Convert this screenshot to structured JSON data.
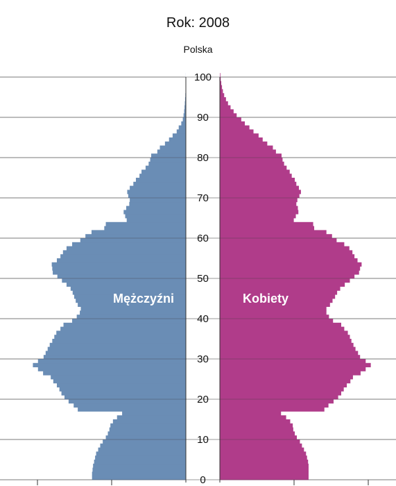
{
  "chart_data": {
    "type": "bar",
    "orientation": "horizontal-population-pyramid",
    "title": "Rok: 2008",
    "subtitle": "Polska",
    "grid": true,
    "y_axis": {
      "range": [
        0,
        100
      ],
      "ticks": [
        "0",
        "10",
        "20",
        "30",
        "40",
        "50",
        "60",
        "70",
        "80",
        "90",
        "100"
      ]
    },
    "x_range_per_side": [
      0,
      340000
    ],
    "age_groups": [
      0,
      1,
      2,
      3,
      4,
      5,
      6,
      7,
      8,
      9,
      10,
      11,
      12,
      13,
      14,
      15,
      16,
      17,
      18,
      19,
      20,
      21,
      22,
      23,
      24,
      25,
      26,
      27,
      28,
      29,
      30,
      31,
      32,
      33,
      34,
      35,
      36,
      37,
      38,
      39,
      40,
      41,
      42,
      43,
      44,
      45,
      46,
      47,
      48,
      49,
      50,
      51,
      52,
      53,
      54,
      55,
      56,
      57,
      58,
      59,
      60,
      61,
      62,
      63,
      64,
      65,
      66,
      67,
      68,
      69,
      70,
      71,
      72,
      73,
      74,
      75,
      76,
      77,
      78,
      79,
      80,
      81,
      82,
      83,
      84,
      85,
      86,
      87,
      88,
      89,
      90,
      91,
      92,
      93,
      94,
      95,
      96,
      97,
      98,
      99,
      100
    ],
    "series": [
      {
        "name": "Mężczyźni",
        "color": "#6a8db5",
        "values": [
          184000,
          184000,
          183000,
          182000,
          180000,
          178000,
          176000,
          172000,
          168000,
          163000,
          157000,
          153000,
          150000,
          148000,
          143000,
          135000,
          125000,
          212000,
          220000,
          230000,
          238000,
          244000,
          248000,
          253000,
          260000,
          265000,
          280000,
          290000,
          300000,
          290000,
          279000,
          275000,
          271000,
          267000,
          262000,
          258000,
          254000,
          246000,
          240000,
          223000,
          214000,
          208000,
          206000,
          212000,
          216000,
          219000,
          222000,
          226000,
          234000,
          243000,
          252000,
          261000,
          262000,
          263000,
          253000,
          246000,
          241000,
          234000,
          223000,
          207000,
          197000,
          185000,
          160000,
          157000,
          116000,
          119000,
          122000,
          117000,
          111000,
          110000,
          113000,
          115000,
          110000,
          103000,
          98000,
          91000,
          87000,
          79000,
          73000,
          70000,
          68000,
          56000,
          51000,
          41000,
          33000,
          26000,
          18000,
          14000,
          9000,
          6000,
          4500,
          3400,
          2600,
          2000,
          1500,
          1000,
          700,
          500,
          300,
          200,
          100
        ],
        "side": "left"
      },
      {
        "name": "Kobiety",
        "color": "#b03c8a",
        "values": [
          174000,
          174000,
          174000,
          174000,
          173000,
          171000,
          169000,
          165000,
          161000,
          157000,
          151000,
          147000,
          144000,
          143000,
          138000,
          130000,
          120000,
          205000,
          213000,
          223000,
          232000,
          238000,
          243000,
          249000,
          256000,
          261000,
          276000,
          286000,
          296000,
          286000,
          275000,
          271000,
          266000,
          262000,
          258000,
          255000,
          251000,
          244000,
          238000,
          222000,
          214000,
          209000,
          209000,
          216000,
          221000,
          226000,
          230000,
          236000,
          245000,
          255000,
          264000,
          273000,
          275000,
          278000,
          270000,
          264000,
          260000,
          254000,
          244000,
          229000,
          220000,
          209000,
          185000,
          183000,
          145000,
          149000,
          154000,
          153000,
          150000,
          152000,
          156000,
          159000,
          155000,
          150000,
          147000,
          141000,
          137000,
          131000,
          126000,
          123000,
          121000,
          110000,
          104000,
          93000,
          84000,
          76000,
          66000,
          58000,
          49000,
          42000,
          33000,
          27000,
          21000,
          16000,
          12000,
          8500,
          6000,
          4200,
          2800,
          1700,
          1000
        ],
        "side": "right"
      }
    ]
  }
}
